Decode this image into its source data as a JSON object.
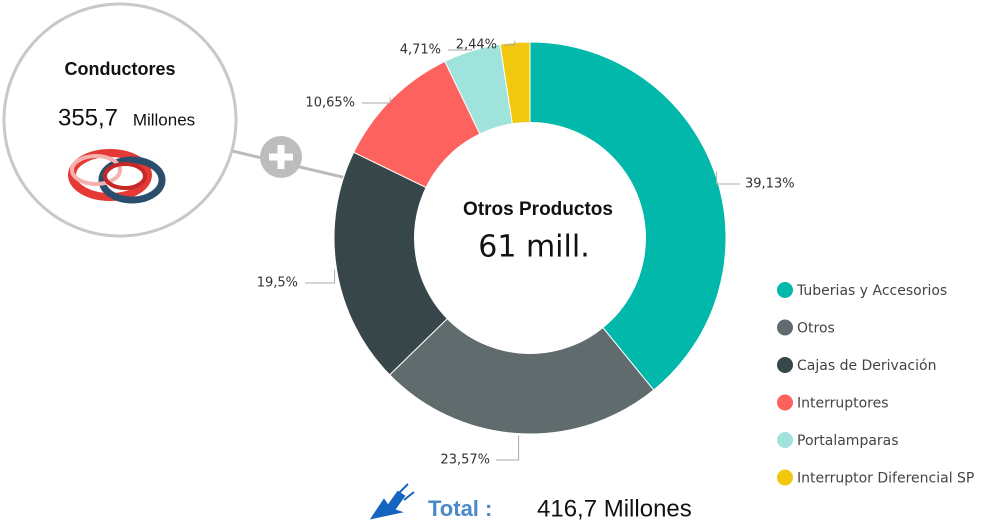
{
  "chart_data": {
    "type": "donut",
    "center_title": "Otros Productos",
    "center_value": "61 mill.",
    "categories": [
      "Tuberias y Accesorios",
      "Otros",
      "Cajas de Derivación",
      "Interruptores",
      "Portalamparas",
      "Interruptor Diferencial SP"
    ],
    "values": [
      39.13,
      23.57,
      19.5,
      10.65,
      4.71,
      2.44
    ],
    "value_labels": [
      "39,13%",
      "23,57%",
      "19,5%",
      "10,65%",
      "4,71%",
      "2,44%"
    ],
    "colors": [
      "#01b8aa",
      "#5f6b6d",
      "#374649",
      "#fd625e",
      "#a0e3dc",
      "#f2c80f"
    ],
    "callout": {
      "title": "Conductores",
      "value": "355,7",
      "unit": "Millones"
    },
    "total": {
      "label": "Total :",
      "value": "416,7 Millones"
    }
  }
}
